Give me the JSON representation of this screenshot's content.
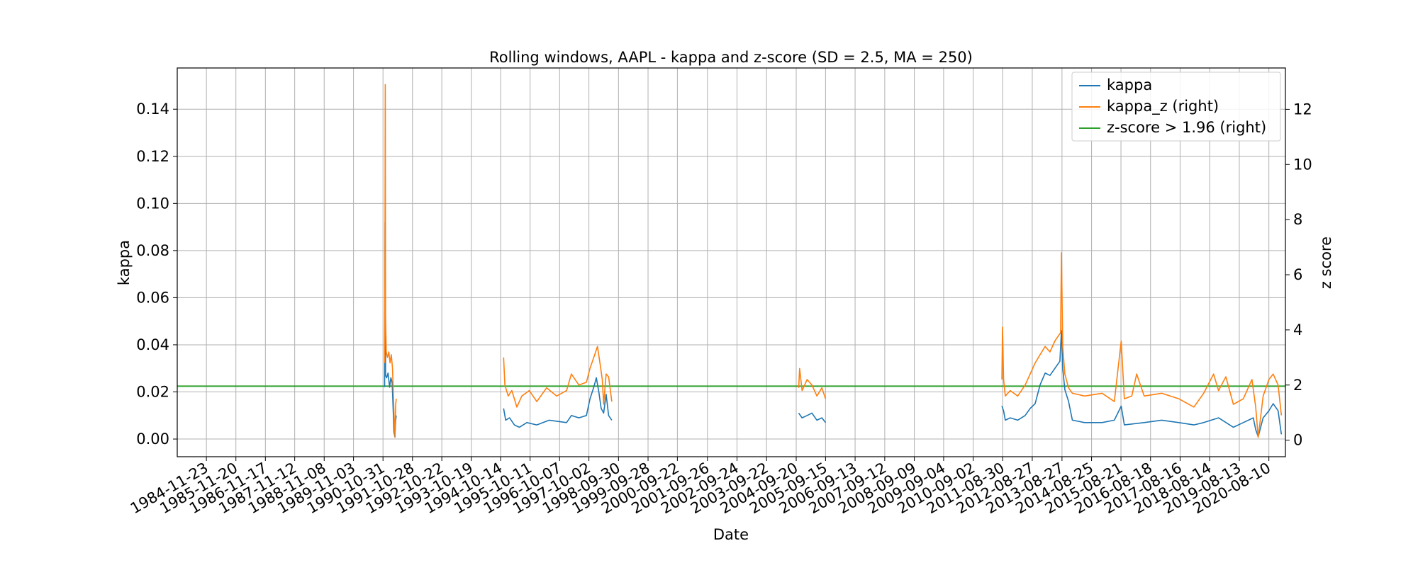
{
  "chart_data": {
    "type": "line",
    "title": "Rolling windows, AAPL - kappa and z-score (SD = 2.5, MA = 250)",
    "xlabel": "Date",
    "ylabel": "kappa",
    "y2label": "z score",
    "grid": true,
    "legend_position": "top-right",
    "xlim": [
      "1983-12-01",
      "2021-03-01"
    ],
    "ylim": [
      -0.0075,
      0.1575
    ],
    "y2lim": [
      -0.6,
      13.5
    ],
    "x_tick_labels": [
      "1984-11-23",
      "1985-11-20",
      "1986-11-17",
      "1987-11-12",
      "1988-11-08",
      "1989-11-03",
      "1990-10-31",
      "1991-10-28",
      "1992-10-22",
      "1993-10-19",
      "1994-10-14",
      "1995-10-11",
      "1996-10-07",
      "1997-10-02",
      "1998-09-30",
      "1999-09-28",
      "2000-09-22",
      "2001-09-26",
      "2002-09-24",
      "2003-09-22",
      "2004-09-20",
      "2005-09-15",
      "2006-09-13",
      "2007-09-12",
      "2008-09-09",
      "2009-09-04",
      "2010-09-02",
      "2011-08-30",
      "2012-08-27",
      "2013-08-27",
      "2014-08-25",
      "2015-08-21",
      "2016-08-18",
      "2017-08-16",
      "2018-08-14",
      "2019-08-13",
      "2020-08-10"
    ],
    "y_ticks": [
      0.0,
      0.02,
      0.04,
      0.06,
      0.08,
      0.1,
      0.12,
      0.14
    ],
    "y_tick_labels": [
      "0.00",
      "0.02",
      "0.04",
      "0.06",
      "0.08",
      "0.10",
      "0.12",
      "0.14"
    ],
    "y2_ticks": [
      0,
      2,
      4,
      6,
      8,
      10,
      12
    ],
    "y2_tick_labels": [
      "0",
      "2",
      "4",
      "6",
      "8",
      "10",
      "12"
    ],
    "threshold": {
      "name": "z-score > 1.96 (right)",
      "value": 1.96,
      "axis": "right",
      "color": "#2ca02c"
    },
    "series": [
      {
        "name": "kappa",
        "axis": "left",
        "color": "#1f77b4",
        "segments": [
          [
            [
              "1990-11-20",
              0.022
            ],
            [
              "1990-11-25",
              0.092
            ],
            [
              "1990-12-01",
              0.027
            ],
            [
              "1990-12-15",
              0.026
            ],
            [
              "1991-01-01",
              0.028
            ],
            [
              "1991-01-20",
              0.022
            ],
            [
              "1991-02-05",
              0.026
            ],
            [
              "1991-02-20",
              0.024
            ],
            [
              "1991-03-05",
              0.012
            ],
            [
              "1991-03-15",
              0.003
            ],
            [
              "1991-03-25",
              0.001
            ],
            [
              "1991-04-05",
              0.008
            ],
            [
              "1991-04-12",
              0.01
            ]
          ],
          [
            [
              "1994-11-20",
              0.013
            ],
            [
              "1994-12-15",
              0.008
            ],
            [
              "1995-02-01",
              0.009
            ],
            [
              "1995-04-01",
              0.006
            ],
            [
              "1995-06-01",
              0.005
            ],
            [
              "1995-09-01",
              0.007
            ],
            [
              "1996-01-01",
              0.006
            ],
            [
              "1996-06-01",
              0.008
            ],
            [
              "1997-01-01",
              0.007
            ],
            [
              "1997-03-01",
              0.01
            ],
            [
              "1997-06-01",
              0.009
            ],
            [
              "1997-09-01",
              0.01
            ],
            [
              "1997-10-15",
              0.017
            ],
            [
              "1997-12-01",
              0.022
            ],
            [
              "1998-01-01",
              0.026
            ],
            [
              "1998-02-01",
              0.02
            ],
            [
              "1998-03-01",
              0.013
            ],
            [
              "1998-04-01",
              0.011
            ],
            [
              "1998-05-01",
              0.019
            ],
            [
              "1998-06-01",
              0.01
            ],
            [
              "1998-07-10",
              0.008
            ]
          ],
          [
            [
              "2004-10-20",
              0.011
            ],
            [
              "2004-12-01",
              0.009
            ],
            [
              "2005-02-01",
              0.01
            ],
            [
              "2005-04-01",
              0.011
            ],
            [
              "2005-06-01",
              0.008
            ],
            [
              "2005-08-01",
              0.009
            ],
            [
              "2005-09-15",
              0.007
            ]
          ],
          [
            [
              "2011-08-20",
              0.014
            ],
            [
              "2011-09-10",
              0.012
            ],
            [
              "2011-10-01",
              0.008
            ],
            [
              "2011-12-01",
              0.009
            ],
            [
              "2012-03-01",
              0.008
            ],
            [
              "2012-06-01",
              0.01
            ],
            [
              "2012-08-01",
              0.013
            ],
            [
              "2012-10-01",
              0.015
            ],
            [
              "2012-12-01",
              0.023
            ],
            [
              "2013-02-01",
              0.028
            ],
            [
              "2013-04-01",
              0.027
            ],
            [
              "2013-06-01",
              0.03
            ],
            [
              "2013-08-01",
              0.033
            ],
            [
              "2013-08-20",
              0.046
            ],
            [
              "2013-09-05",
              0.03
            ],
            [
              "2013-10-01",
              0.021
            ],
            [
              "2013-11-15",
              0.016
            ],
            [
              "2014-01-01",
              0.008
            ],
            [
              "2014-06-01",
              0.007
            ],
            [
              "2015-01-01",
              0.007
            ],
            [
              "2015-06-01",
              0.008
            ],
            [
              "2015-08-24",
              0.014
            ],
            [
              "2015-10-01",
              0.006
            ],
            [
              "2016-06-01",
              0.007
            ],
            [
              "2017-01-01",
              0.008
            ],
            [
              "2017-08-01",
              0.007
            ],
            [
              "2018-02-01",
              0.006
            ],
            [
              "2018-06-01",
              0.007
            ],
            [
              "2018-12-01",
              0.009
            ],
            [
              "2019-06-01",
              0.005
            ],
            [
              "2019-10-01",
              0.007
            ],
            [
              "2020-02-01",
              0.009
            ],
            [
              "2020-03-01",
              0.004
            ],
            [
              "2020-04-01",
              0.001
            ],
            [
              "2020-06-01",
              0.009
            ],
            [
              "2020-08-10",
              0.012
            ],
            [
              "2020-10-01",
              0.015
            ],
            [
              "2020-12-01",
              0.012
            ],
            [
              "2021-01-10",
              0.002
            ]
          ]
        ]
      },
      {
        "name": "kappa_z (right)",
        "axis": "right",
        "color": "#ff7f0e",
        "segments": [
          [
            [
              "1990-11-20",
              2.8
            ],
            [
              "1990-11-24",
              7.0
            ],
            [
              "1990-11-28",
              12.9
            ],
            [
              "1990-12-01",
              4.5
            ],
            [
              "1990-12-10",
              3.2
            ],
            [
              "1990-12-25",
              3.0
            ],
            [
              "1991-01-10",
              3.2
            ],
            [
              "1991-01-25",
              2.8
            ],
            [
              "1991-02-10",
              3.1
            ],
            [
              "1991-02-25",
              2.6
            ],
            [
              "1991-03-08",
              1.6
            ],
            [
              "1991-03-18",
              0.7
            ],
            [
              "1991-03-28",
              0.1
            ],
            [
              "1991-04-05",
              1.3
            ],
            [
              "1991-04-12",
              1.5
            ]
          ],
          [
            [
              "1994-11-20",
              3.0
            ],
            [
              "1994-12-05",
              2.0
            ],
            [
              "1995-01-15",
              1.6
            ],
            [
              "1995-03-01",
              1.8
            ],
            [
              "1995-05-01",
              1.2
            ],
            [
              "1995-07-01",
              1.6
            ],
            [
              "1995-10-01",
              1.8
            ],
            [
              "1996-01-01",
              1.4
            ],
            [
              "1996-05-01",
              1.9
            ],
            [
              "1996-09-01",
              1.6
            ],
            [
              "1997-01-01",
              1.8
            ],
            [
              "1997-03-01",
              2.4
            ],
            [
              "1997-06-01",
              2.0
            ],
            [
              "1997-09-01",
              2.1
            ],
            [
              "1997-10-15",
              2.6
            ],
            [
              "1997-12-01",
              3.0
            ],
            [
              "1998-01-15",
              3.4
            ],
            [
              "1998-02-15",
              2.8
            ],
            [
              "1998-03-15",
              2.2
            ],
            [
              "1998-04-01",
              1.3
            ],
            [
              "1998-05-01",
              2.4
            ],
            [
              "1998-06-01",
              2.3
            ],
            [
              "1998-07-10",
              1.4
            ]
          ],
          [
            [
              "2004-10-20",
              1.9
            ],
            [
              "2004-11-01",
              2.6
            ],
            [
              "2004-12-01",
              1.8
            ],
            [
              "2005-02-01",
              2.2
            ],
            [
              "2005-04-01",
              2.0
            ],
            [
              "2005-06-01",
              1.6
            ],
            [
              "2005-08-01",
              1.9
            ],
            [
              "2005-09-15",
              1.5
            ]
          ],
          [
            [
              "2011-08-20",
              2.2
            ],
            [
              "2011-08-28",
              4.1
            ],
            [
              "2011-09-10",
              2.2
            ],
            [
              "2011-10-01",
              1.6
            ],
            [
              "2011-12-01",
              1.8
            ],
            [
              "2012-03-01",
              1.6
            ],
            [
              "2012-06-01",
              2.0
            ],
            [
              "2012-08-01",
              2.4
            ],
            [
              "2012-10-01",
              2.8
            ],
            [
              "2012-12-01",
              3.1
            ],
            [
              "2013-02-01",
              3.4
            ],
            [
              "2013-04-01",
              3.2
            ],
            [
              "2013-06-01",
              3.6
            ],
            [
              "2013-08-10",
              3.9
            ],
            [
              "2013-08-20",
              6.8
            ],
            [
              "2013-09-05",
              3.4
            ],
            [
              "2013-10-01",
              2.4
            ],
            [
              "2013-11-15",
              1.9
            ],
            [
              "2014-01-01",
              1.7
            ],
            [
              "2014-06-01",
              1.6
            ],
            [
              "2015-01-01",
              1.7
            ],
            [
              "2015-06-01",
              1.4
            ],
            [
              "2015-08-24",
              3.6
            ],
            [
              "2015-10-01",
              1.5
            ],
            [
              "2016-01-01",
              1.6
            ],
            [
              "2016-03-01",
              2.4
            ],
            [
              "2016-06-01",
              1.6
            ],
            [
              "2017-01-01",
              1.7
            ],
            [
              "2017-08-01",
              1.5
            ],
            [
              "2018-02-01",
              1.2
            ],
            [
              "2018-06-01",
              1.7
            ],
            [
              "2018-10-01",
              2.4
            ],
            [
              "2018-12-01",
              1.8
            ],
            [
              "2019-03-01",
              2.3
            ],
            [
              "2019-06-01",
              1.3
            ],
            [
              "2019-10-01",
              1.5
            ],
            [
              "2020-01-15",
              2.2
            ],
            [
              "2020-03-01",
              1.2
            ],
            [
              "2020-04-01",
              0.1
            ],
            [
              "2020-06-01",
              1.6
            ],
            [
              "2020-08-10",
              2.2
            ],
            [
              "2020-10-01",
              2.4
            ],
            [
              "2020-12-01",
              2.0
            ],
            [
              "2021-01-10",
              0.9
            ]
          ]
        ]
      }
    ]
  }
}
